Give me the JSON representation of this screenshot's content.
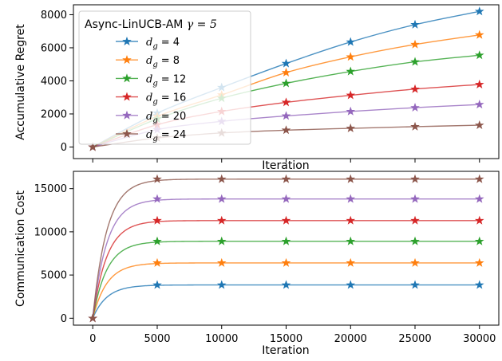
{
  "chart_data": [
    {
      "type": "line",
      "ylabel": "Accumulative Regret",
      "xlabel": "Iteration",
      "xlim": [
        -1500,
        31500
      ],
      "ylim": [
        -700,
        8600
      ],
      "x_ticks": [
        0,
        5000,
        10000,
        15000,
        20000,
        25000,
        30000
      ],
      "x_tick_labels_shown": false,
      "y_ticks": [
        0,
        2000,
        4000,
        6000,
        8000
      ],
      "y_tick_labels": [
        "0",
        "2000",
        "4000",
        "6000",
        "8000"
      ],
      "legend": {
        "title_text": "Async-LinUCB-AM",
        "title_gamma": "γ = 5",
        "placement": "upper-left",
        "entries": [
          {
            "sub_text": "g",
            "value_text": "= 4"
          },
          {
            "sub_text": "g",
            "value_text": "= 8"
          },
          {
            "sub_text": "g",
            "value_text": "= 12"
          },
          {
            "sub_text": "g",
            "value_text": "= 16"
          },
          {
            "sub_text": "g",
            "value_text": "= 20"
          },
          {
            "sub_text": "g",
            "value_text": "= 24"
          }
        ]
      },
      "x": [
        0,
        5000,
        10000,
        15000,
        20000,
        25000,
        30000
      ],
      "series": [
        {
          "color": "#1f77b4",
          "values": [
            0,
            2050,
            3600,
            5050,
            6350,
            7400,
            8200
          ]
        },
        {
          "color": "#ff7f0e",
          "values": [
            0,
            1850,
            3150,
            4500,
            5450,
            6200,
            6780
          ]
        },
        {
          "color": "#2ca02c",
          "values": [
            0,
            1700,
            2950,
            3850,
            4570,
            5150,
            5550
          ]
        },
        {
          "color": "#d62728",
          "values": [
            0,
            1350,
            2150,
            2700,
            3130,
            3500,
            3780
          ]
        },
        {
          "color": "#9467bd",
          "values": [
            0,
            1050,
            1550,
            1880,
            2150,
            2380,
            2570
          ]
        },
        {
          "color": "#8c564b",
          "values": [
            0,
            550,
            850,
            1020,
            1130,
            1230,
            1320
          ]
        }
      ],
      "grid": false
    },
    {
      "type": "line",
      "ylabel": "Communication Cost",
      "xlabel": "Iteration",
      "xlim": [
        -1500,
        31500
      ],
      "ylim": [
        -800,
        17000
      ],
      "x_ticks": [
        0,
        5000,
        10000,
        15000,
        20000,
        25000,
        30000
      ],
      "x_tick_labels": [
        "0",
        "5000",
        "10000",
        "15000",
        "20000",
        "25000",
        "30000"
      ],
      "y_ticks": [
        0,
        5000,
        10000,
        15000
      ],
      "y_tick_labels": [
        "0",
        "5000",
        "10000",
        "15000"
      ],
      "x": [
        0,
        5000,
        10000,
        15000,
        20000,
        25000,
        30000
      ],
      "series": [
        {
          "color": "#1f77b4",
          "plateau": 3850,
          "values": [
            0,
            3850,
            3850,
            3850,
            3850,
            3850,
            3850
          ]
        },
        {
          "color": "#ff7f0e",
          "plateau": 6400,
          "values": [
            0,
            6400,
            6400,
            6400,
            6400,
            6400,
            6400
          ]
        },
        {
          "color": "#2ca02c",
          "plateau": 8900,
          "values": [
            0,
            8900,
            8900,
            8900,
            8900,
            8900,
            8900
          ]
        },
        {
          "color": "#d62728",
          "plateau": 11300,
          "values": [
            0,
            11300,
            11300,
            11300,
            11300,
            11300,
            11300
          ]
        },
        {
          "color": "#9467bd",
          "plateau": 13800,
          "values": [
            0,
            13800,
            13800,
            13800,
            13800,
            13800,
            13800
          ]
        },
        {
          "color": "#8c564b",
          "plateau": 16100,
          "values": [
            0,
            16100,
            16100,
            16100,
            16100,
            16100,
            16100
          ]
        }
      ],
      "grid": false
    }
  ]
}
